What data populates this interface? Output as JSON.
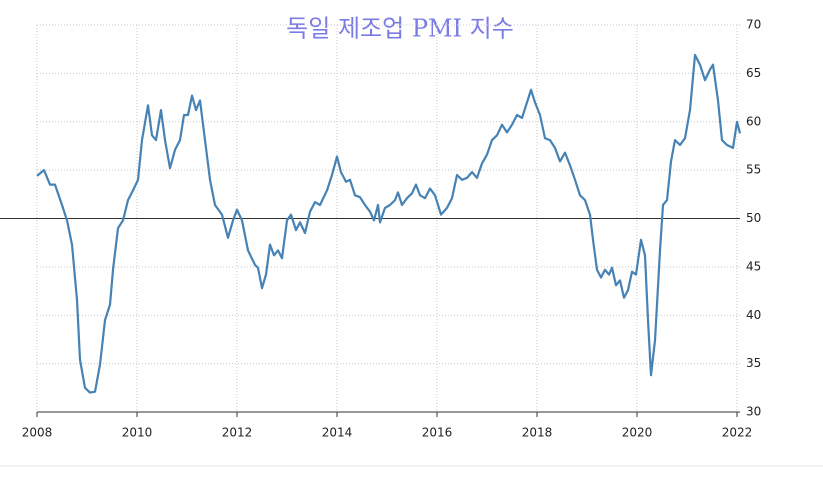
{
  "chart_data": {
    "type": "line",
    "title": "독일 제조업 PMI 지수",
    "x": [
      2008.0,
      2008.14,
      2008.26,
      2008.36,
      2008.5,
      2008.6,
      2008.7,
      2008.8,
      2008.86,
      2008.96,
      2009.06,
      2009.16,
      2009.26,
      2009.36,
      2009.46,
      2009.52,
      2009.62,
      2009.72,
      2009.82,
      2009.92,
      2010.02,
      2010.1,
      2010.22,
      2010.3,
      2010.38,
      2010.48,
      2010.56,
      2010.66,
      2010.76,
      2010.86,
      2010.94,
      2011.02,
      2011.1,
      2011.18,
      2011.26,
      2011.36,
      2011.46,
      2011.56,
      2011.7,
      2011.82,
      2011.92,
      2012.0,
      2012.1,
      2012.22,
      2012.36,
      2012.42,
      2012.5,
      2012.58,
      2012.66,
      2012.74,
      2012.82,
      2012.9,
      2013.0,
      2013.08,
      2013.18,
      2013.26,
      2013.36,
      2013.46,
      2013.56,
      2013.66,
      2013.8,
      2013.9,
      2014.0,
      2014.08,
      2014.18,
      2014.26,
      2014.36,
      2014.46,
      2014.56,
      2014.66,
      2014.74,
      2014.82,
      2014.86,
      2014.96,
      2015.06,
      2015.16,
      2015.22,
      2015.3,
      2015.4,
      2015.5,
      2015.58,
      2015.66,
      2015.76,
      2015.86,
      2015.96,
      2016.08,
      2016.2,
      2016.3,
      2016.4,
      2016.5,
      2016.6,
      2016.7,
      2016.8,
      2016.9,
      2017.0,
      2017.1,
      2017.2,
      2017.3,
      2017.4,
      2017.5,
      2017.6,
      2017.7,
      2017.8,
      2017.88,
      2017.96,
      2018.06,
      2018.16,
      2018.26,
      2018.36,
      2018.46,
      2018.56,
      2018.66,
      2018.76,
      2018.86,
      2018.96,
      2019.06,
      2019.12,
      2019.2,
      2019.28,
      2019.36,
      2019.44,
      2019.5,
      2019.58,
      2019.66,
      2019.74,
      2019.82,
      2019.9,
      2019.98,
      2020.08,
      2020.16,
      2020.22,
      2020.28,
      2020.36,
      2020.46,
      2020.52,
      2020.6,
      2020.68,
      2020.76,
      2020.86,
      2020.96,
      2021.06,
      2021.16,
      2021.26,
      2021.36,
      2021.46,
      2021.52,
      2021.62,
      2021.7,
      2021.8,
      2021.92,
      2022.0,
      2022.06
    ],
    "values": [
      54.4,
      55.0,
      53.5,
      53.5,
      51.4,
      49.8,
      47.3,
      41.6,
      35.4,
      32.5,
      32.0,
      32.1,
      34.9,
      39.5,
      41.1,
      44.7,
      49.0,
      49.8,
      51.9,
      52.9,
      54.0,
      58.1,
      61.7,
      58.6,
      58.1,
      61.2,
      58.1,
      55.2,
      57.1,
      58.1,
      60.7,
      60.7,
      62.7,
      61.2,
      62.2,
      58.1,
      54.0,
      51.4,
      50.4,
      48.0,
      49.8,
      50.9,
      49.8,
      46.7,
      45.2,
      44.9,
      42.8,
      44.2,
      47.3,
      46.2,
      46.7,
      45.9,
      49.8,
      50.4,
      48.8,
      49.6,
      48.5,
      50.7,
      51.7,
      51.4,
      52.9,
      54.5,
      56.4,
      54.8,
      53.8,
      54.0,
      52.4,
      52.2,
      51.4,
      50.7,
      49.8,
      51.4,
      49.6,
      51.1,
      51.4,
      51.9,
      52.7,
      51.4,
      52.1,
      52.6,
      53.5,
      52.4,
      52.1,
      53.1,
      52.4,
      50.4,
      51.1,
      52.1,
      54.5,
      54.0,
      54.2,
      54.8,
      54.2,
      55.7,
      56.6,
      58.1,
      58.6,
      59.7,
      58.9,
      59.7,
      60.7,
      60.4,
      62.0,
      63.3,
      62.0,
      60.7,
      58.3,
      58.1,
      57.3,
      55.9,
      56.8,
      55.5,
      54.0,
      52.4,
      51.9,
      50.4,
      47.8,
      44.7,
      43.9,
      44.7,
      44.2,
      44.9,
      43.1,
      43.6,
      41.8,
      42.6,
      44.5,
      44.2,
      47.8,
      46.2,
      39.5,
      33.8,
      37.4,
      46.7,
      51.4,
      51.9,
      55.9,
      58.1,
      57.6,
      58.3,
      61.2,
      66.9,
      65.9,
      64.3,
      65.4,
      65.9,
      62.2,
      58.1,
      57.6,
      57.3,
      60.0,
      58.8
    ],
    "color": "#4682b4",
    "xlim": [
      2008,
      2022.06
    ],
    "xticks": [
      2008,
      2010,
      2012,
      2014,
      2016,
      2018,
      2020,
      2022
    ],
    "ylim": [
      30,
      70
    ],
    "yticks": [
      30,
      35,
      40,
      45,
      50,
      55,
      60,
      65,
      70
    ],
    "reference_line": 50,
    "grid": true
  }
}
